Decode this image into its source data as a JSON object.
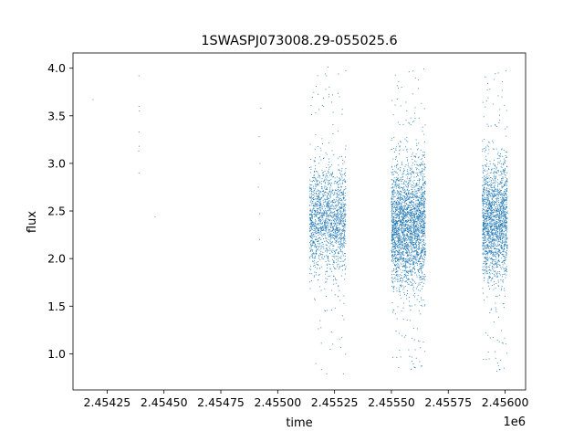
{
  "chart_data": {
    "type": "scatter",
    "title": "1SWASPJ073008.29-055025.6",
    "xlabel": "time",
    "ylabel": "flux",
    "x_offset_label": "1e6",
    "xlim": [
      2.4541,
      2.45609
    ],
    "ylim": [
      0.62,
      4.16
    ],
    "x_ticks": [
      2.45425,
      2.4545,
      2.45475,
      2.455,
      2.45525,
      2.4555,
      2.45575,
      2.456
    ],
    "x_tick_labels": [
      "2.45425",
      "2.45450",
      "2.45475",
      "2.45500",
      "2.45525",
      "2.45550",
      "2.45575",
      "2.45600"
    ],
    "y_ticks": [
      1.0,
      1.5,
      2.0,
      2.5,
      3.0,
      3.5,
      4.0
    ],
    "y_tick_labels": [
      "1.0",
      "1.5",
      "2.0",
      "2.5",
      "3.0",
      "3.5",
      "4.0"
    ],
    "grid": false,
    "marker_color": "#1f77b4",
    "series": [
      {
        "isolated_points": [
          {
            "x": 2.454188,
            "y": 3.67
          },
          {
            "x": 2.45439,
            "y": 3.92
          },
          {
            "x": 2.45439,
            "y": 3.6
          },
          {
            "x": 2.454392,
            "y": 3.55
          },
          {
            "x": 2.45439,
            "y": 3.33
          },
          {
            "x": 2.454391,
            "y": 3.18
          },
          {
            "x": 2.454389,
            "y": 3.13
          },
          {
            "x": 2.45439,
            "y": 2.9
          },
          {
            "x": 2.454461,
            "y": 2.44
          },
          {
            "x": 2.454926,
            "y": 3.58
          },
          {
            "x": 2.454918,
            "y": 3.28
          },
          {
            "x": 2.454922,
            "y": 3.0
          },
          {
            "x": 2.454915,
            "y": 2.75
          },
          {
            "x": 2.454921,
            "y": 2.47
          },
          {
            "x": 2.45492,
            "y": 2.2
          }
        ],
        "clusters": [
          {
            "x_range": [
              2.45514,
              2.4553
            ],
            "y_center": 2.4,
            "y_spread": 0.28,
            "y_range": [
              0.78,
              4.02
            ],
            "count": 1600
          },
          {
            "x_range": [
              2.4555,
              2.45565
            ],
            "y_center": 2.35,
            "y_spread": 0.32,
            "y_range": [
              0.8,
              4.0
            ],
            "count": 2600
          },
          {
            "x_range": [
              2.4559,
              2.45601
            ],
            "y_center": 2.4,
            "y_spread": 0.3,
            "y_range": [
              0.78,
              3.98
            ],
            "count": 1800
          }
        ]
      }
    ]
  }
}
